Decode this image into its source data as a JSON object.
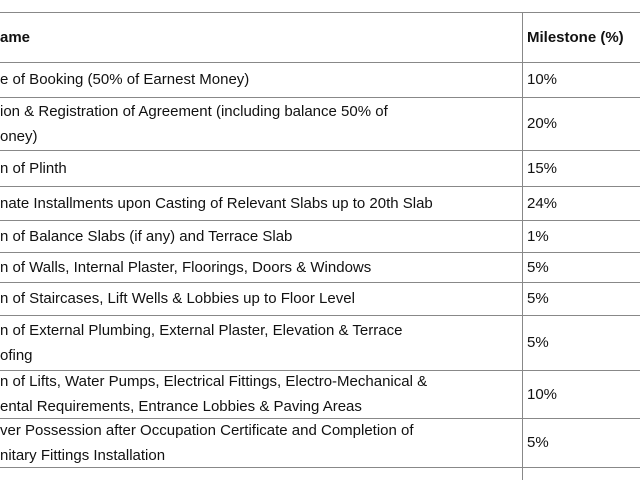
{
  "table": {
    "header": [
      "ame",
      "Milestone (%)"
    ],
    "rows": [
      [
        [
          "e of Booking (50% of Earnest Money)"
        ],
        "10%"
      ],
      [
        [
          "ion & Registration of Agreement (including balance 50% of",
          "oney)"
        ],
        "20%"
      ],
      [
        [
          "n of Plinth"
        ],
        "15%"
      ],
      [
        [
          "nate Installments upon Casting of Relevant Slabs up to 20th Slab"
        ],
        "24%"
      ],
      [
        [
          "n of Balance Slabs (if any) and Terrace Slab"
        ],
        "1%"
      ],
      [
        [
          "n of Walls, Internal Plaster, Floorings, Doors & Windows"
        ],
        "5%"
      ],
      [
        [
          "n of Staircases, Lift Wells & Lobbies up to Floor Level"
        ],
        "5%"
      ],
      [
        [
          "n of External Plumbing, External Plaster, Elevation & Terrace",
          "ofing"
        ],
        "5%"
      ],
      [
        [
          "n of Lifts, Water Pumps, Electrical Fittings, Electro-Mechanical &",
          "ental Requirements, Entrance Lobbies & Paving Areas"
        ],
        "10%"
      ],
      [
        [
          "ver Possession after Occupation Certificate and Completion of",
          "nitary Fittings Installation"
        ],
        "5%"
      ]
    ]
  }
}
